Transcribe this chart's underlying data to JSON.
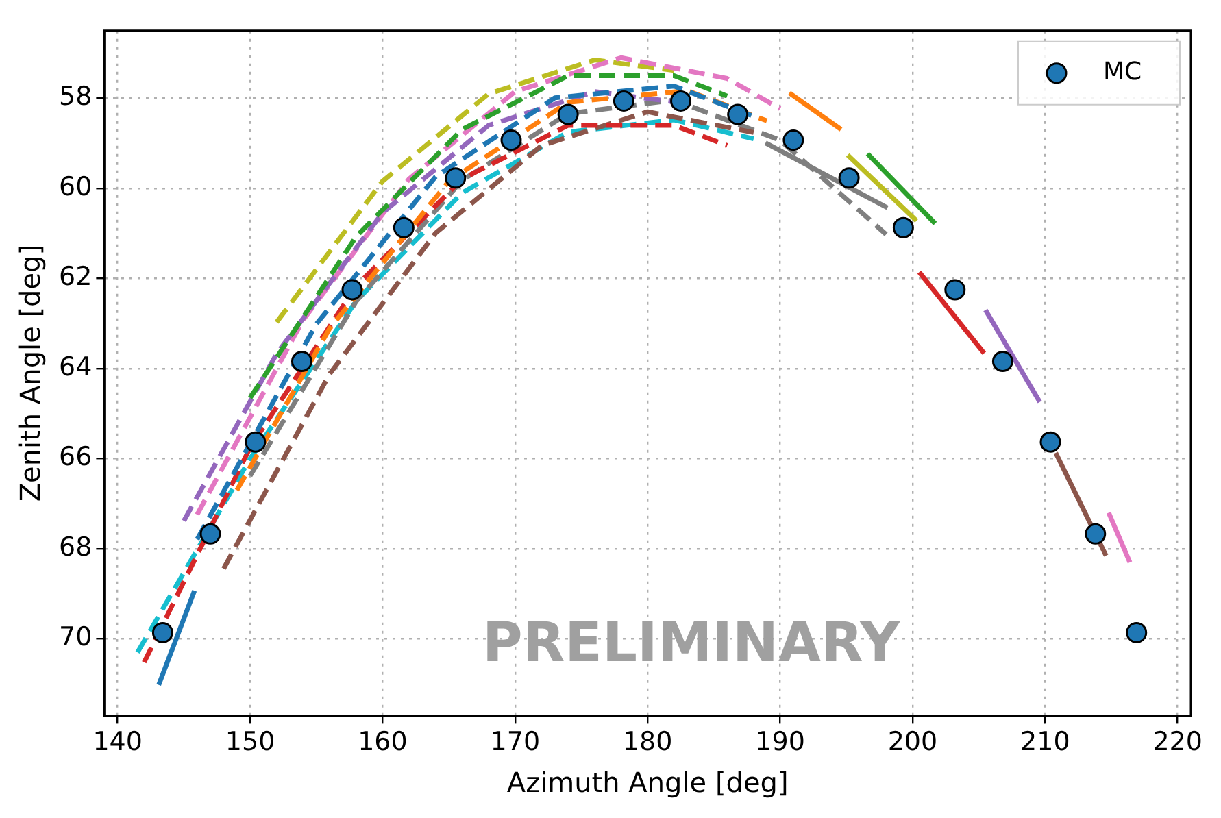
{
  "chart_data": {
    "type": "line",
    "xlabel": "Azimuth Angle [deg]",
    "ylabel": "Zenith Angle [deg]",
    "xlim": [
      139,
      221
    ],
    "ylim": [
      71.7,
      56.5
    ],
    "xticks": [
      140,
      150,
      160,
      170,
      180,
      190,
      200,
      210,
      220
    ],
    "yticks": [
      58,
      60,
      62,
      64,
      66,
      68,
      70
    ],
    "grid": true,
    "legend": "top right",
    "line_style": "dashed",
    "annotations": [
      "PRELIMINARY"
    ],
    "series": [
      {
        "color": "#1f77b4",
        "x": [
          146,
          155,
          164,
          173,
          182,
          188
        ],
        "values": [
          67.79,
          63.01,
          59.74,
          57.99,
          57.73,
          58.4
        ]
      },
      {
        "color": "#ff7f0e",
        "x": [
          149,
          156,
          165,
          174,
          183,
          189
        ],
        "values": [
          66.7,
          63.11,
          59.84,
          58.09,
          57.83,
          58.5
        ]
      },
      {
        "color": "#2ca02c",
        "x": [
          150,
          158,
          166,
          174,
          182,
          186
        ],
        "values": [
          64.65,
          61.07,
          58.69,
          57.5,
          57.5,
          57.95
        ]
      },
      {
        "color": "#d62728",
        "x": [
          142,
          150,
          158,
          166,
          174,
          182,
          186
        ],
        "values": [
          70.52,
          65.75,
          62.17,
          59.79,
          58.6,
          58.6,
          59.05
        ]
      },
      {
        "color": "#9467bd",
        "x": [
          145,
          152,
          160,
          168,
          176,
          182
        ],
        "values": [
          67.38,
          63.67,
          60.54,
          58.6,
          57.85,
          58.08
        ]
      },
      {
        "color": "#8c564b",
        "x": [
          148,
          156,
          164,
          172,
          180,
          188
        ],
        "values": [
          68.44,
          64.12,
          60.99,
          59.05,
          58.3,
          58.76
        ]
      },
      {
        "color": "#e377c2",
        "x": [
          146,
          154,
          162,
          170,
          178,
          186,
          190
        ],
        "values": [
          67.24,
          62.92,
          59.79,
          57.85,
          57.1,
          57.56,
          58.23
        ]
      },
      {
        "color": "#7f7f7f",
        "x": [
          150,
          158,
          166,
          174,
          182,
          190,
          198
        ],
        "values": [
          66.38,
          62.51,
          59.82,
          58.34,
          58.04,
          58.93,
          61.02
        ]
      },
      {
        "color": "#bcbd22",
        "x": [
          152,
          160,
          168,
          176,
          182
        ],
        "values": [
          62.97,
          59.84,
          57.9,
          57.15,
          57.38
        ]
      },
      {
        "color": "#17becf",
        "x": [
          141.5,
          150,
          158,
          166,
          174,
          182,
          188
        ],
        "values": [
          70.3,
          66.0,
          62.5,
          60.1,
          58.75,
          58.48,
          58.9
        ]
      },
      {
        "color": "#d62728",
        "line_style": "solid",
        "x": [
          200.5,
          205.4
        ],
        "values": [
          61.86,
          63.66
        ]
      },
      {
        "color": "#9467bd",
        "line_style": "solid",
        "x": [
          205.5,
          209.6
        ],
        "values": [
          62.7,
          64.74
        ]
      },
      {
        "color": "#8c564b",
        "line_style": "solid",
        "x": [
          210.8,
          214.6
        ],
        "values": [
          65.87,
          68.15
        ]
      },
      {
        "color": "#e377c2",
        "line_style": "solid",
        "x": [
          214.8,
          216.4
        ],
        "values": [
          67.2,
          68.3
        ]
      },
      {
        "color": "#1f77b4",
        "line_style": "solid",
        "x": [
          143.1,
          145.8
        ],
        "values": [
          71.02,
          68.93
        ]
      },
      {
        "color": "#2ca02c",
        "line_style": "solid",
        "x": [
          196.6,
          201.7
        ],
        "values": [
          59.23,
          60.78
        ]
      },
      {
        "color": "#bcbd22",
        "line_style": "solid",
        "x": [
          195.1,
          200.3
        ],
        "values": [
          59.26,
          60.72
        ]
      },
      {
        "color": "#ff7f0e",
        "line_style": "solid",
        "x": [
          190.7,
          194.6
        ],
        "values": [
          57.88,
          58.69
        ]
      },
      {
        "color": "#7f7f7f",
        "line_style": "solid",
        "x": [
          188.9,
          198.1
        ],
        "values": [
          58.99,
          60.43
        ]
      },
      {
        "name": "MC",
        "type": "scatter",
        "marker": "circle",
        "color": "#1f77b4",
        "x": [
          143.4,
          147.0,
          150.4,
          153.9,
          157.7,
          161.6,
          165.5,
          169.7,
          174.0,
          178.2,
          182.5,
          186.8,
          191.0,
          195.2,
          199.3,
          203.2,
          206.8,
          210.4,
          213.8,
          216.9
        ],
        "values": [
          69.86,
          67.67,
          65.63,
          63.84,
          62.25,
          60.87,
          59.77,
          58.93,
          58.36,
          58.06,
          58.06,
          58.36,
          58.93,
          59.77,
          60.87,
          62.25,
          63.84,
          65.63,
          67.67,
          69.86
        ]
      }
    ]
  }
}
